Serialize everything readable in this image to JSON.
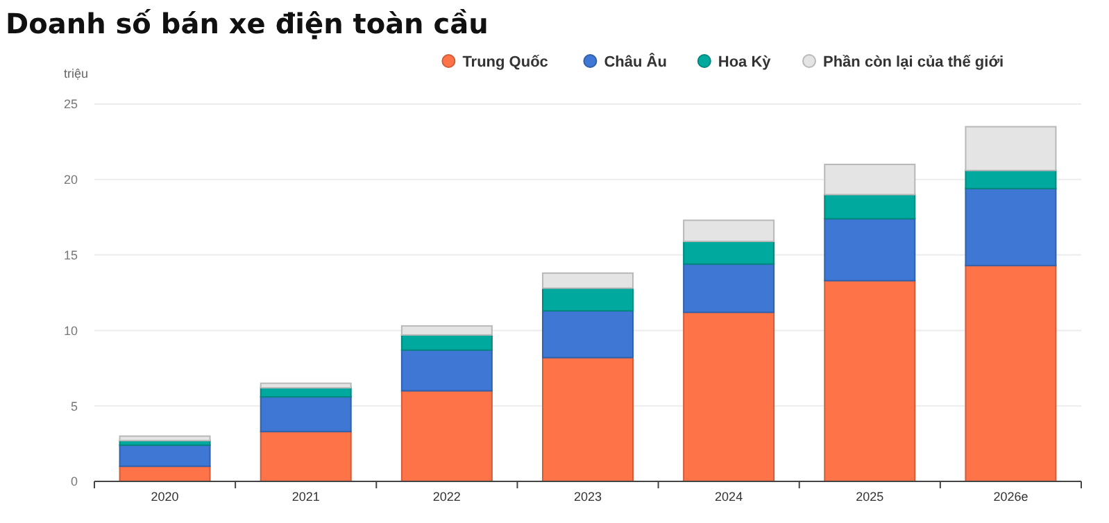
{
  "chart_data": {
    "type": "bar",
    "title": "Doanh số bán xe điện toàn cầu",
    "ylabel": "triệu",
    "stacked": true,
    "categories": [
      "2020",
      "2021",
      "2022",
      "2023",
      "2024",
      "2025",
      "2026e"
    ],
    "series": [
      {
        "name": "Trung Quốc",
        "color": "#ff7349",
        "values": [
          1.0,
          3.3,
          6.0,
          8.2,
          11.2,
          13.3,
          14.3
        ]
      },
      {
        "name": "Châu Âu",
        "color": "#3e78d4",
        "values": [
          1.4,
          2.3,
          2.7,
          3.1,
          3.2,
          4.1,
          5.1
        ]
      },
      {
        "name": "Hoa Kỳ",
        "color": "#00a99d",
        "values": [
          0.3,
          0.6,
          1.0,
          1.5,
          1.5,
          1.6,
          1.2
        ]
      },
      {
        "name": "Phần còn lại của thế giới",
        "color": "#e4e4e4",
        "values": [
          0.3,
          0.3,
          0.6,
          1.0,
          1.4,
          2.0,
          2.9
        ]
      }
    ],
    "ylim": [
      0,
      25
    ],
    "yticks": [
      0,
      5,
      10,
      15,
      20,
      25
    ],
    "grid": "y",
    "legend": "top right"
  }
}
